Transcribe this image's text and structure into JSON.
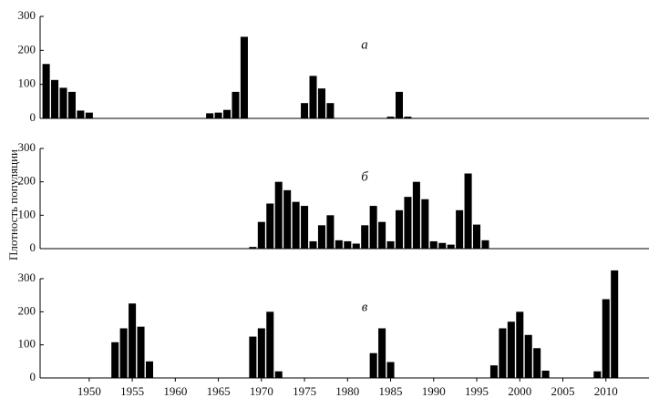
{
  "chart_data": [
    {
      "type": "bar",
      "title": "а",
      "y_label": "Плотность популяции",
      "color": "#000000",
      "x": [
        1945,
        1946,
        1947,
        1948,
        1949,
        1950,
        1964,
        1965,
        1966,
        1967,
        1968,
        1975,
        1976,
        1977,
        1978,
        1985,
        1986,
        1987
      ],
      "values": [
        160,
        113,
        90,
        78,
        23,
        17,
        15,
        17,
        25,
        78,
        240,
        45,
        125,
        88,
        45,
        5,
        78,
        5
      ],
      "xlim": [
        1944.3,
        2015
      ],
      "ylim": [
        0,
        300
      ],
      "yticks": [
        0,
        100,
        200,
        300
      ]
    },
    {
      "type": "bar",
      "title": "б",
      "color": "#000000",
      "x": [
        1969,
        1970,
        1971,
        1972,
        1973,
        1974,
        1975,
        1976,
        1977,
        1978,
        1979,
        1980,
        1981,
        1982,
        1983,
        1984,
        1985,
        1986,
        1987,
        1988,
        1989,
        1990,
        1991,
        1992,
        1993,
        1994,
        1995,
        1996
      ],
      "values": [
        5,
        80,
        135,
        200,
        175,
        140,
        128,
        22,
        70,
        100,
        25,
        22,
        15,
        70,
        128,
        80,
        22,
        115,
        155,
        200,
        148,
        22,
        17,
        12,
        115,
        225,
        72,
        25
      ],
      "xlim": [
        1944.3,
        2015
      ],
      "ylim": [
        0,
        300
      ],
      "yticks": [
        0,
        100,
        200,
        300
      ]
    },
    {
      "type": "bar",
      "title": "в",
      "color": "#000000",
      "x": [
        1953,
        1954,
        1955,
        1956,
        1957,
        1969,
        1970,
        1971,
        1972,
        1983,
        1984,
        1985,
        1997,
        1998,
        1999,
        2000,
        2001,
        2002,
        2003,
        2009,
        2010,
        2011
      ],
      "values": [
        108,
        150,
        225,
        155,
        50,
        125,
        150,
        200,
        20,
        75,
        150,
        48,
        38,
        150,
        170,
        200,
        130,
        90,
        22,
        20,
        238,
        325
      ],
      "xlim": [
        1944.3,
        2015
      ],
      "ylim": [
        0,
        300
      ],
      "yticks": [
        0,
        100,
        200,
        300
      ],
      "xticks": [
        1950,
        1955,
        1960,
        1965,
        1970,
        1975,
        1980,
        1985,
        1990,
        1995,
        2000,
        2005,
        2010
      ]
    }
  ]
}
